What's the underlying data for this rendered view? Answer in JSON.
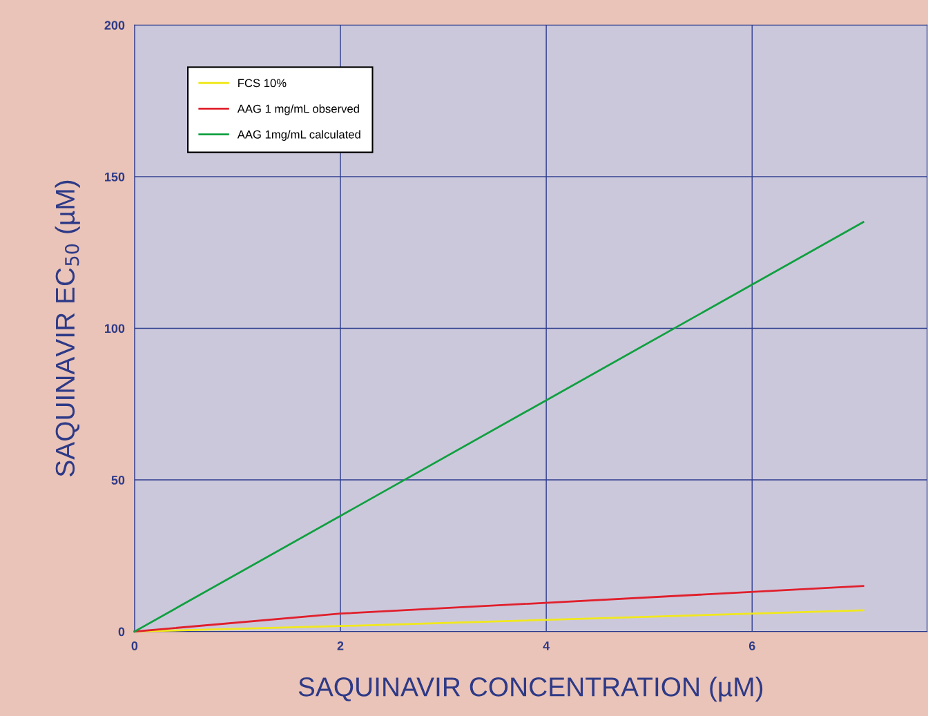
{
  "chart_data": {
    "type": "line",
    "xlabel": "SAQUINAVIR CONCENTRATION (µM)",
    "ylabel": "SAQUINAVIR EC$_{50}$ (µM)",
    "series": [
      {
        "name": "FCS 10%",
        "color": "#f0e81c",
        "x": [
          0,
          2,
          7.08
        ],
        "values": [
          0,
          1.8,
          7
        ]
      },
      {
        "name": "AAG 1 mg/mL observed",
        "color": "#e0202c",
        "x": [
          0,
          2,
          7.08
        ],
        "values": [
          0,
          5.9,
          15
        ]
      },
      {
        "name": "AAG 1mg/mL calculated",
        "color": "#10a040",
        "x": [
          0,
          7.08
        ],
        "values": [
          0,
          135
        ]
      }
    ],
    "xlim": [
      0,
      7.7
    ],
    "xticks": [
      0,
      2,
      4,
      6
    ],
    "ylim": [
      0,
      200
    ],
    "yticks": [
      0,
      50,
      100,
      150,
      200
    ],
    "grid": true,
    "legend": "top left",
    "marker": "none",
    "line_style": "solid"
  }
}
